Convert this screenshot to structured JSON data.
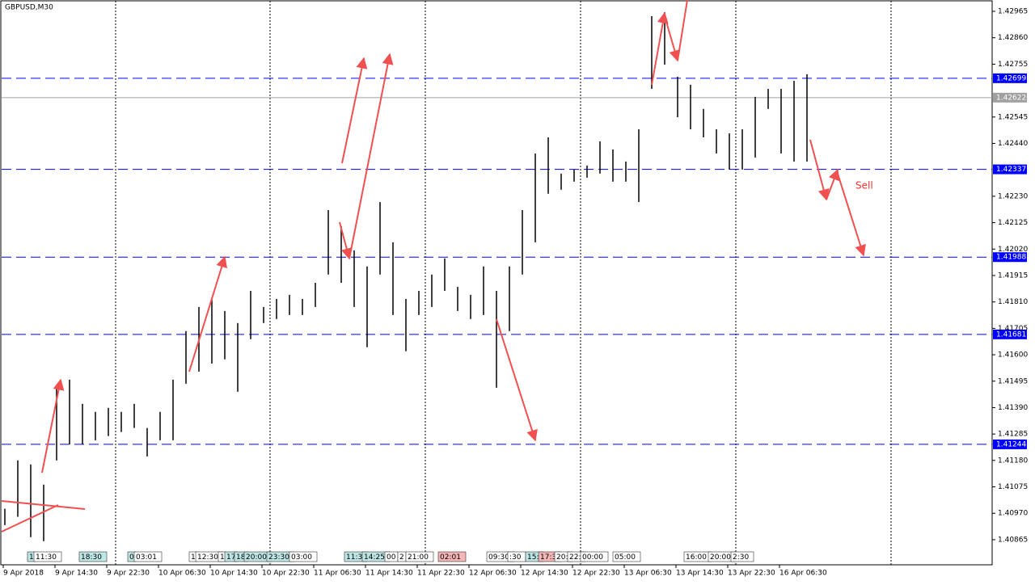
{
  "chart_data": {
    "type": "hlc_bars",
    "title": "GBPUSD,M30",
    "ylim": [
      1.40762,
      1.4301
    ],
    "yticks": [
      {
        "value": 1.42965,
        "label": "1.42965"
      },
      {
        "value": 1.4286,
        "label": "1.42860"
      },
      {
        "value": 1.42755,
        "label": "1.42755"
      },
      {
        "value": 1.42545,
        "label": "1.42545"
      },
      {
        "value": 1.4244,
        "label": "1.42440"
      },
      {
        "value": 1.4223,
        "label": "1.42230"
      },
      {
        "value": 1.42125,
        "label": "1.42125"
      },
      {
        "value": 1.4202,
        "label": "1.42020"
      },
      {
        "value": 1.41915,
        "label": "1.41915"
      },
      {
        "value": 1.4181,
        "label": "1.41810"
      },
      {
        "value": 1.41705,
        "label": "1.41705"
      },
      {
        "value": 1.416,
        "label": "1.41600"
      },
      {
        "value": 1.41495,
        "label": "1.41495"
      },
      {
        "value": 1.4139,
        "label": "1.41390"
      },
      {
        "value": 1.41285,
        "label": "1.41285"
      },
      {
        "value": 1.4118,
        "label": "1.41180"
      },
      {
        "value": 1.41075,
        "label": "1.41075"
      },
      {
        "value": 1.4097,
        "label": "1.40970"
      },
      {
        "value": 1.40865,
        "label": "1.40865"
      }
    ],
    "x_labels": [
      "9 Apr 2018",
      "9 Apr 14:30",
      "9 Apr 22:30",
      "10 Apr 06:30",
      "10 Apr 14:30",
      "10 Apr 22:30",
      "11 Apr 06:30",
      "11 Apr 14:30",
      "11 Apr 22:30",
      "12 Apr 06:30",
      "12 Apr 14:30",
      "12 Apr 22:30",
      "13 Apr 06:30",
      "13 Apr 14:30",
      "13 Apr 22:30",
      "16 Apr 06:30"
    ],
    "bar_color": "#000000",
    "high": [
      1.40988,
      1.4118,
      1.41164,
      1.41084,
      1.41469,
      1.41501,
      1.41405,
      1.41373,
      1.41389,
      1.41373,
      1.41405,
      1.41309,
      1.41373,
      1.41501,
      1.41694,
      1.4179,
      1.41822,
      1.41774,
      1.41726,
      1.41854,
      1.4179,
      1.41822,
      1.41838,
      1.41822,
      1.41886,
      1.42175,
      1.42111,
      1.42015,
      1.41951,
      1.42207,
      1.42047,
      1.41822,
      1.41854,
      1.41919,
      1.41983,
      1.4187,
      1.41838,
      1.41951,
      1.41854,
      1.41951,
      1.42175,
      1.424,
      1.42464,
      1.4232,
      1.42336,
      1.42352,
      1.42448,
      1.42416,
      1.42368,
      1.42496,
      1.42946,
      1.42962,
      1.42705,
      1.42673,
      1.42577,
      1.42496,
      1.4248,
      1.42496,
      1.42625,
      1.42657,
      1.42657,
      1.42689,
      1.42715
    ],
    "low": [
      1.40923,
      1.40956,
      1.40875,
      1.40859,
      1.4118,
      1.41244,
      1.41244,
      1.4126,
      1.41277,
      1.41293,
      1.41309,
      1.41196,
      1.4126,
      1.4126,
      1.41485,
      1.41533,
      1.41565,
      1.41582,
      1.41453,
      1.41662,
      1.41726,
      1.41742,
      1.41758,
      1.41758,
      1.4179,
      1.41919,
      1.41886,
      1.4179,
      1.4163,
      1.41919,
      1.41758,
      1.41614,
      1.41758,
      1.4179,
      1.41854,
      1.41774,
      1.41742,
      1.41758,
      1.41469,
      1.41694,
      1.41919,
      1.42047,
      1.4224,
      1.42256,
      1.42288,
      1.42304,
      1.4232,
      1.42288,
      1.42288,
      1.42207,
      1.42657,
      1.42753,
      1.42544,
      1.42496,
      1.42464,
      1.424,
      1.42336,
      1.42336,
      1.42384,
      1.42577,
      1.424,
      1.42368,
      1.42368
    ],
    "levels": [
      {
        "value": 1.42699,
        "color": "#0000ff"
      },
      {
        "value": 1.42337,
        "color": "#0000ff"
      },
      {
        "value": 1.41988,
        "color": "#0000ff"
      },
      {
        "value": 1.41681,
        "color": "#0000ff"
      },
      {
        "value": 1.41244,
        "color": "#0000ff"
      },
      {
        "value": 1.42622,
        "color": "#a0a0a0"
      }
    ],
    "annotation": "Sell",
    "time_badges": [
      {
        "text": "1",
        "color": "#bfe6e6"
      },
      {
        "text": "11:30",
        "color": "#ffffff"
      },
      {
        "text": "18:30",
        "color": "#bfe6e6"
      },
      {
        "text": "0",
        "color": "#bfe6e6"
      },
      {
        "text": "03:01",
        "color": "#ffffff"
      },
      {
        "text": "1",
        "color": "#ffffff"
      },
      {
        "text": "12:30",
        "color": "#ffffff"
      },
      {
        "text": "1",
        "color": "#ffffff"
      },
      {
        "text": "17",
        "color": "#bfe6e6"
      },
      {
        "text": "18",
        "color": "#bfe6e6"
      },
      {
        "text": "20:00",
        "color": "#bfe6e6"
      },
      {
        "text": "23:30",
        "color": "#bfe6e6"
      },
      {
        "text": "03:00",
        "color": "#ffffff"
      },
      {
        "text": "11:3",
        "color": "#bfe6e6"
      },
      {
        "text": "14:25",
        "color": "#bfe6e6"
      },
      {
        "text": "00",
        "color": "#ffffff"
      },
      {
        "text": "2",
        "color": "#ffffff"
      },
      {
        "text": "21:00",
        "color": "#ffffff"
      },
      {
        "text": "02:01",
        "color": "#f4b6b6"
      },
      {
        "text": "09:30",
        "color": "#ffffff"
      },
      {
        "text": ":30",
        "color": "#ffffff"
      },
      {
        "text": "15:",
        "color": "#bfe6e6"
      },
      {
        "text": "17:3",
        "color": "#f4b6b6"
      },
      {
        "text": "20:",
        "color": "#ffffff"
      },
      {
        "text": "22:",
        "color": "#ffffff"
      },
      {
        "text": "00:00",
        "color": "#ffffff"
      },
      {
        "text": "05:00",
        "color": "#ffffff"
      },
      {
        "text": "16:00",
        "color": "#ffffff"
      },
      {
        "text": "20:00",
        "color": "#ffffff"
      },
      {
        "text": "2:30",
        "color": "#ffffff"
      }
    ]
  }
}
